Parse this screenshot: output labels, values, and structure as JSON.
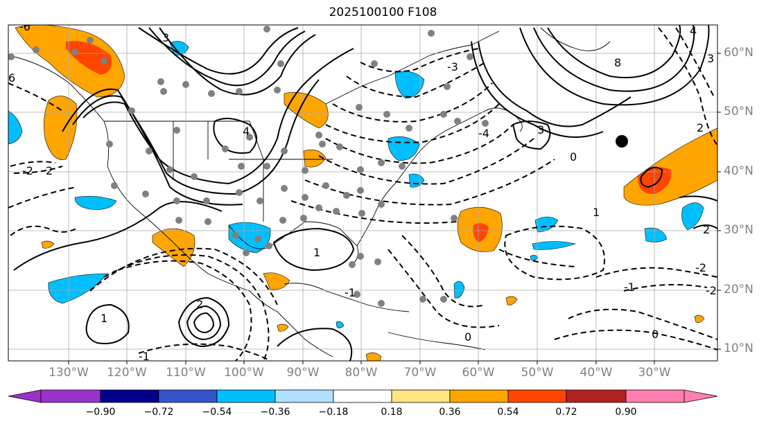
{
  "title": "2025100100 F108",
  "lat_labels": [
    "60°N",
    "50°N",
    "40°N",
    "30°N",
    "20°N",
    "10°N"
  ],
  "lon_labels": [
    "130°W",
    "120°W",
    "110°W",
    "100°W",
    "90°W",
    "80°W",
    "70°W",
    "60°W",
    "50°W",
    "40°W",
    "30°W"
  ],
  "colorbar": {
    "ticks": [
      "−0.90",
      "−0.72",
      "−0.54",
      "−0.36",
      "−0.18",
      "0.18",
      "0.36",
      "0.54",
      "0.72",
      "0.90"
    ],
    "colors": [
      "#9933cc",
      "#00008b",
      "#3355cc",
      "#00bfff",
      "#b0e0ff",
      "#ffffff",
      "#ffe680",
      "#ffa500",
      "#ff4500",
      "#b22222",
      "#ff80b0"
    ]
  },
  "contour_labels": [
    "3",
    "4",
    "8",
    "2",
    "1",
    "0",
    "-1",
    "-2",
    "-3",
    "-4",
    "-6",
    "6",
    "3",
    "4",
    "3",
    "2",
    "-2",
    "1",
    "2",
    "0",
    "-1",
    "1",
    "2",
    "-2",
    "0",
    "-1"
  ],
  "colors": {
    "positive_anomaly": "#ffa500",
    "strong_positive": "#ff4500",
    "negative_anomaly": "#00bfff",
    "station_dot": "#808080",
    "grid": "#a9a9a9"
  }
}
